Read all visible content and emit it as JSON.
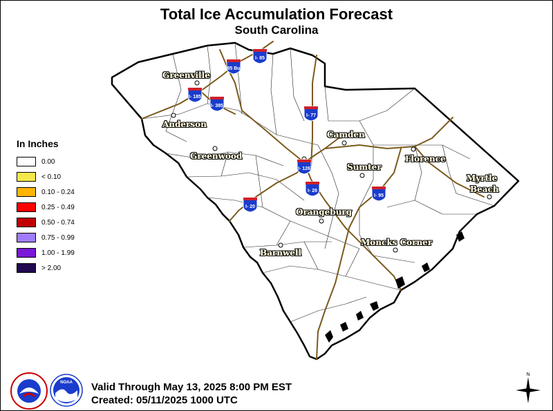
{
  "header": {
    "title": "Total Ice Accumulation Forecast",
    "subtitle": "South Carolina"
  },
  "legend": {
    "title": "In Inches",
    "items": [
      {
        "label": "0.00",
        "color": "#ffffff"
      },
      {
        "label": "< 0.10",
        "color": "#f5e84a"
      },
      {
        "label": "0.10 - 0.24",
        "color": "#ffb400"
      },
      {
        "label": "0.25 - 0.49",
        "color": "#ff0000"
      },
      {
        "label": "0.50 - 0.74",
        "color": "#c00000"
      },
      {
        "label": "0.75 - 0.99",
        "color": "#9f7cff"
      },
      {
        "label": "1.00 - 1.99",
        "color": "#7a17d8"
      },
      {
        "label": "> 2.00",
        "color": "#22094f"
      }
    ]
  },
  "cities": {
    "greenville": "Greenville",
    "anderson": "Anderson",
    "greenwood": "Greenwood",
    "camden": "Camden",
    "sumter": "Sumter",
    "florence": "Florence",
    "myrtle": "Myrtle",
    "beach": "Beach",
    "orangeburg": "Orangeburg",
    "moncks_corner": "Moncks Corner",
    "barnwell": "Barnwell"
  },
  "interstates": {
    "i85": "I- 85",
    "i85b": "85 Bu",
    "i185": "I- 185",
    "i385": "I- 385",
    "i77": "I- 77",
    "i126": "I- 126",
    "i26": "I- 26",
    "i20": "I- 20",
    "i95": "I- 95"
  },
  "footer": {
    "valid": "Valid Through May 13, 2025 8:00 PM EST",
    "created": "Created: 05/11/2025 1000 UTC"
  },
  "logos": {
    "nws": "NATIONAL WEATHER SERVICE",
    "noaa": "NOAA"
  },
  "compass": {
    "north": "N"
  },
  "colors": {
    "roads": "#7a5a1c",
    "state_fill": "#ffffff",
    "interstate_shield": "#1a3ccc",
    "interstate_top": "#d0202a"
  }
}
